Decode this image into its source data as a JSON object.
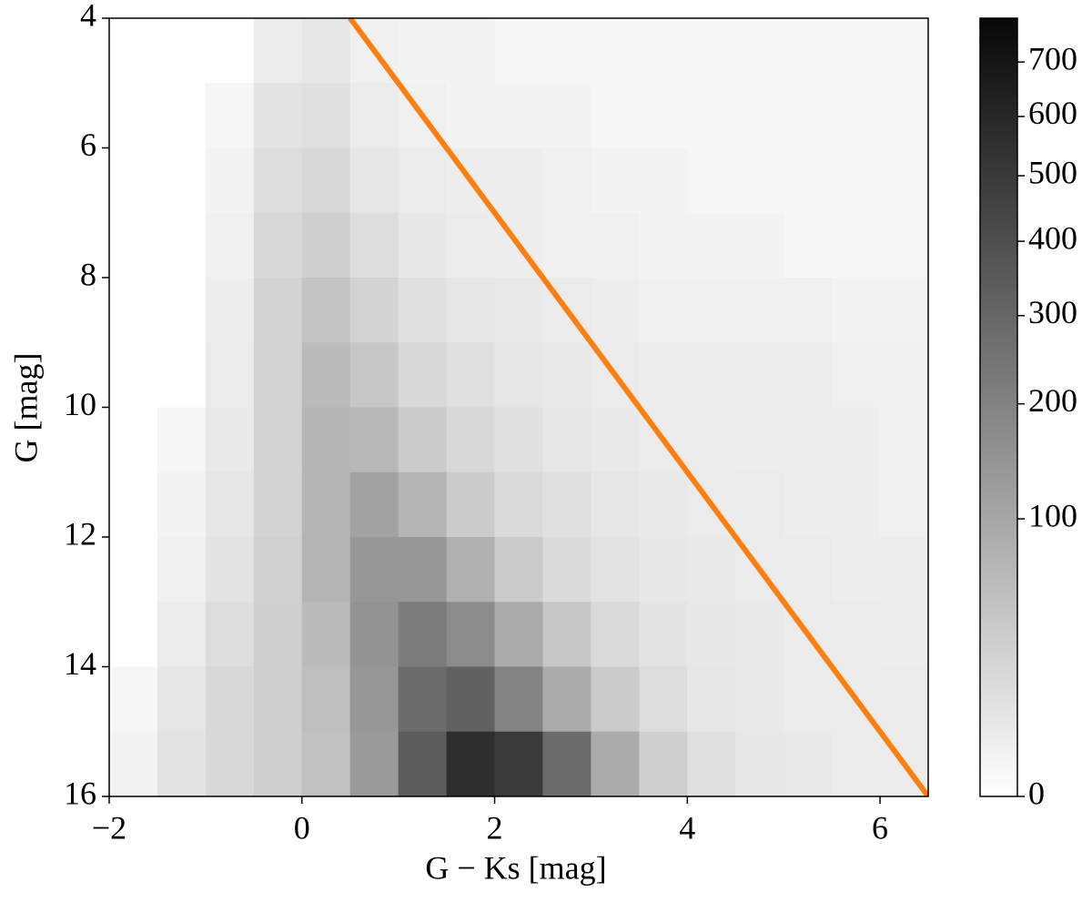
{
  "chart_data": {
    "type": "hist2d",
    "xlabel": "G − Ks [mag]",
    "ylabel": "G [mag]",
    "xlim": [
      -2,
      6.5
    ],
    "ylim": [
      16,
      4
    ],
    "xticks": [
      {
        "value": -2,
        "label": "−2"
      },
      0,
      2,
      4,
      6
    ],
    "yticks": [
      4,
      6,
      8,
      10,
      12,
      14,
      16
    ],
    "xbins": [
      -2,
      -1.5,
      -1,
      -0.5,
      0,
      0.5,
      1,
      1.5,
      2,
      2.5,
      3,
      3.5,
      4,
      4.5,
      5,
      5.5,
      6,
      6.5
    ],
    "ybins": [
      4,
      5,
      6,
      7,
      8,
      9,
      10,
      11,
      12,
      13,
      14,
      15,
      16
    ],
    "z": [
      [
        0,
        0,
        0,
        5,
        8,
        3,
        2,
        2,
        1,
        1,
        1,
        1,
        1,
        1,
        1,
        1,
        1
      ],
      [
        0,
        0,
        1,
        10,
        12,
        5,
        3,
        2,
        2,
        2,
        1,
        1,
        1,
        1,
        1,
        1,
        1
      ],
      [
        0,
        0,
        2,
        15,
        20,
        8,
        5,
        4,
        4,
        3,
        2,
        2,
        1,
        1,
        1,
        1,
        1
      ],
      [
        0,
        0,
        3,
        20,
        30,
        15,
        7,
        5,
        4,
        3,
        3,
        2,
        2,
        2,
        1,
        1,
        1
      ],
      [
        0,
        0,
        4,
        25,
        45,
        25,
        12,
        8,
        6,
        5,
        4,
        3,
        3,
        3,
        3,
        2,
        2
      ],
      [
        0,
        0,
        5,
        25,
        60,
        40,
        20,
        12,
        8,
        6,
        5,
        4,
        4,
        4,
        4,
        3,
        3
      ],
      [
        0,
        1,
        6,
        25,
        70,
        65,
        35,
        20,
        12,
        8,
        6,
        5,
        5,
        4,
        4,
        4,
        3
      ],
      [
        0,
        2,
        8,
        25,
        70,
        110,
        70,
        35,
        18,
        12,
        8,
        6,
        5,
        5,
        4,
        4,
        3
      ],
      [
        0,
        3,
        10,
        28,
        70,
        140,
        140,
        80,
        35,
        18,
        10,
        7,
        6,
        5,
        5,
        4,
        4
      ],
      [
        0,
        5,
        15,
        30,
        60,
        150,
        220,
        170,
        90,
        40,
        18,
        10,
        7,
        6,
        5,
        5,
        4
      ],
      [
        1,
        8,
        20,
        30,
        55,
        140,
        280,
        320,
        200,
        90,
        35,
        15,
        8,
        6,
        5,
        5,
        5
      ],
      [
        2,
        10,
        20,
        30,
        50,
        130,
        340,
        560,
        500,
        280,
        90,
        30,
        12,
        7,
        6,
        5,
        5
      ]
    ],
    "colormap": "Greys",
    "norm": "sqrt",
    "clim": [
      0,
      786
    ],
    "cticks": [
      0,
      100,
      200,
      300,
      400,
      500,
      600,
      700
    ],
    "line": {
      "color": "#ff7f0e",
      "x": [
        0.5,
        6.5
      ],
      "y": [
        4,
        16
      ]
    }
  }
}
